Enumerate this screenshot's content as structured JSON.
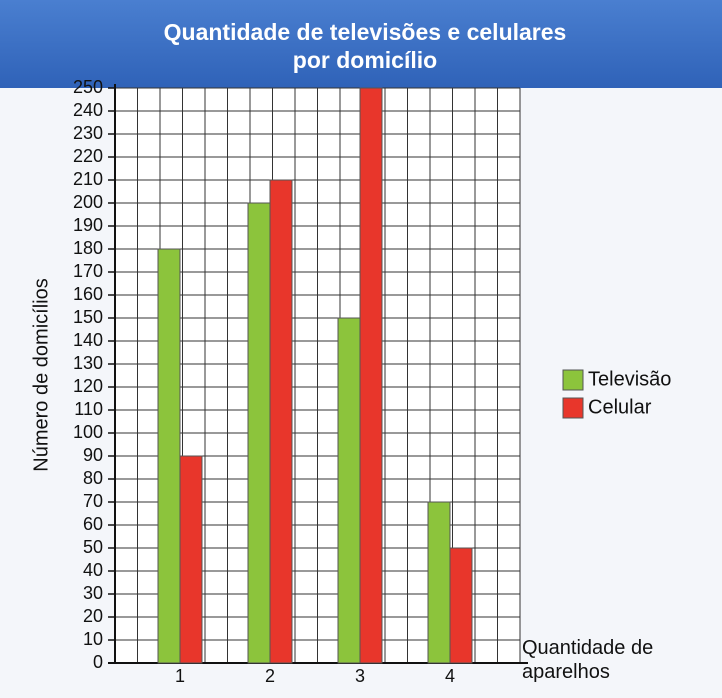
{
  "chart_data": {
    "type": "bar",
    "title": "Quantidade de televisões e celulares por domicílio",
    "x_label": "Quantidade de aparelhos",
    "y_label": "Número de domicílios",
    "categories": [
      "1",
      "2",
      "3",
      "4"
    ],
    "series": [
      {
        "name": "Televisão",
        "color": "#8cc43c",
        "values": [
          180,
          200,
          150,
          70
        ]
      },
      {
        "name": "Celular",
        "color": "#e8362b",
        "values": [
          90,
          210,
          250,
          50
        ]
      }
    ],
    "ylim": [
      0,
      250
    ],
    "yticks": [
      0,
      10,
      20,
      30,
      40,
      50,
      60,
      70,
      80,
      90,
      100,
      110,
      120,
      130,
      140,
      150,
      160,
      170,
      180,
      190,
      200,
      210,
      220,
      230,
      240,
      250
    ],
    "grid": true
  }
}
